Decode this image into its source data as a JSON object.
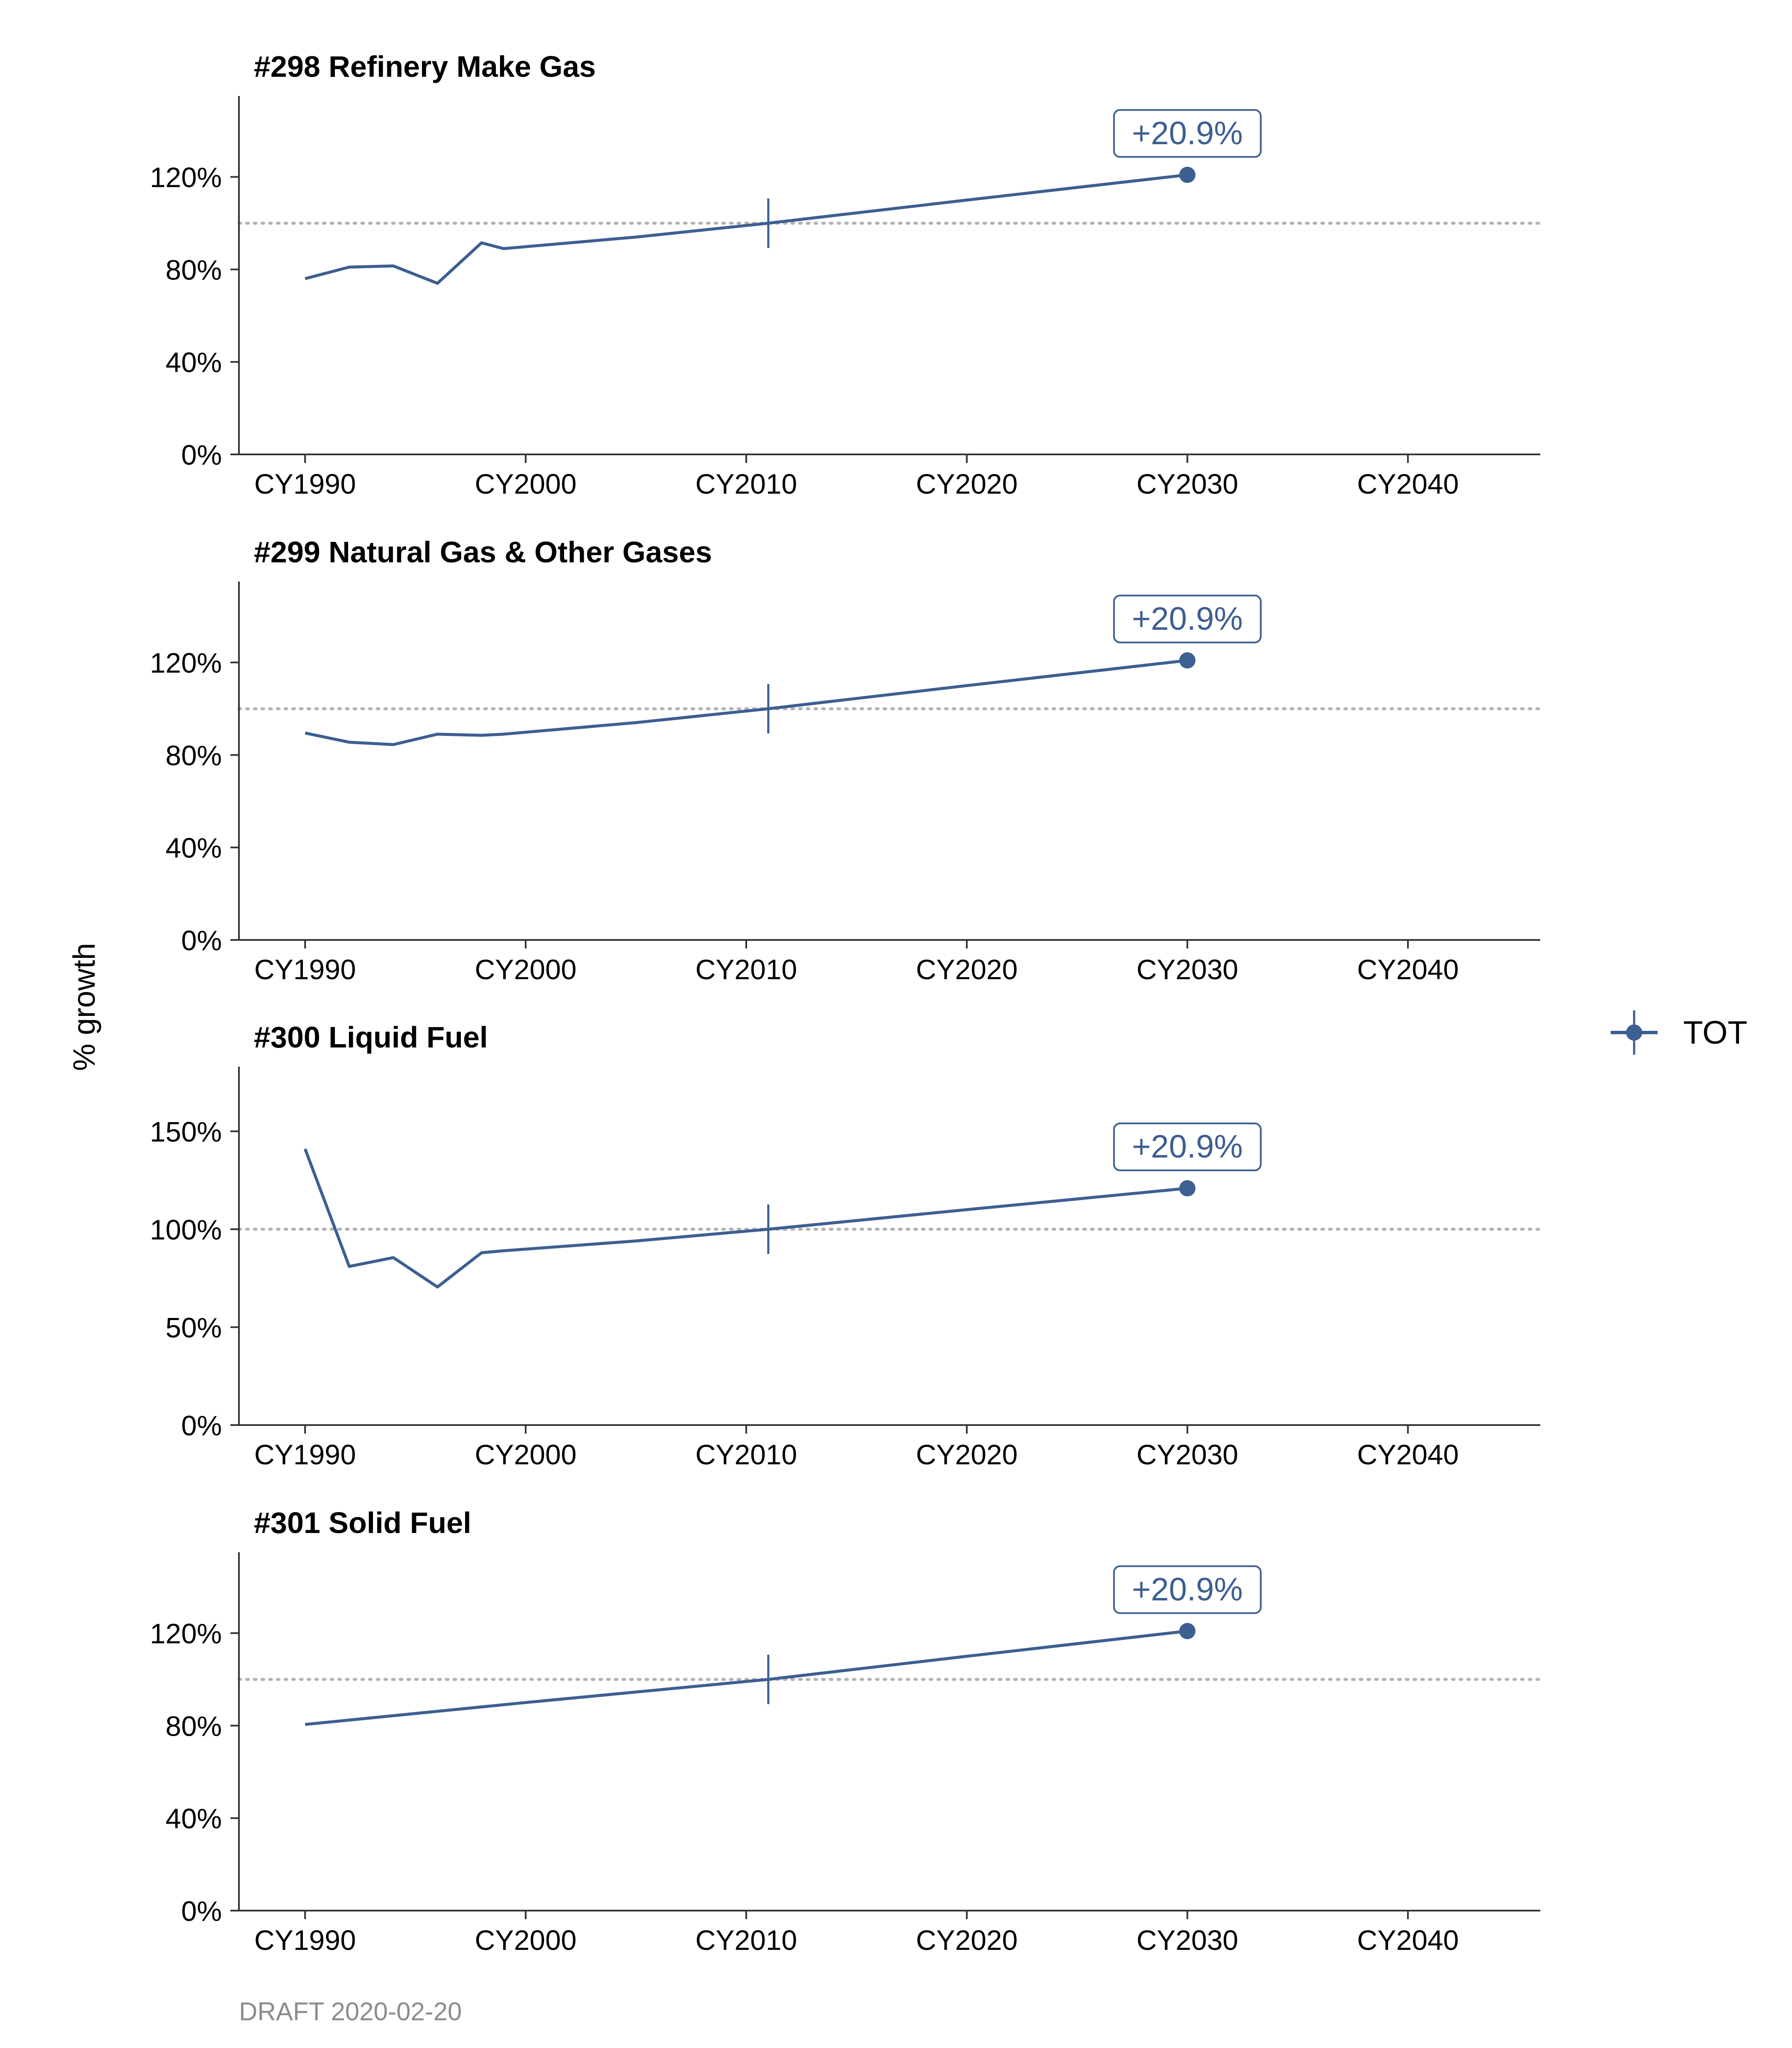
{
  "figure": {
    "ylabel": "% growth",
    "caption": "DRAFT 2020-02-20",
    "legend": {
      "label": "TOT",
      "placement": "right"
    },
    "colors": {
      "series": "#3d5f91",
      "axis": "#333333",
      "text": "#000000",
      "reference": "#b3b3b3",
      "caption": "#8c8c8c"
    }
  },
  "chart_data": [
    {
      "type": "line",
      "title": "#298 Refinery Make Gas",
      "xlim": [
        1990,
        2046
      ],
      "ylim": [
        0,
        155
      ],
      "x_ticks": [
        1990,
        2000,
        2010,
        2020,
        2030,
        2040
      ],
      "x_tick_labels": [
        "CY1990",
        "CY2000",
        "CY2010",
        "CY2020",
        "CY2030",
        "CY2040"
      ],
      "y_ticks": [
        0,
        40,
        80,
        120
      ],
      "y_tick_labels": [
        "0%",
        "40%",
        "80%",
        "120%"
      ],
      "reference_line": 100,
      "base_year_marker": {
        "x": 2011,
        "y": 100
      },
      "end_point": {
        "x": 2030,
        "y": 120.9
      },
      "annotation": "+20.9%",
      "series": [
        {
          "name": "TOT",
          "x": [
            1990,
            1992,
            1994,
            1996,
            1998,
            1999,
            2005,
            2011,
            2020,
            2030
          ],
          "y": [
            76,
            81,
            81.5,
            74,
            91.5,
            89,
            94,
            100,
            110,
            120.9
          ]
        }
      ]
    },
    {
      "type": "line",
      "title": "#299 Natural Gas & Other Gases",
      "xlim": [
        1990,
        2046
      ],
      "ylim": [
        0,
        155
      ],
      "x_ticks": [
        1990,
        2000,
        2010,
        2020,
        2030,
        2040
      ],
      "x_tick_labels": [
        "CY1990",
        "CY2000",
        "CY2010",
        "CY2020",
        "CY2030",
        "CY2040"
      ],
      "y_ticks": [
        0,
        40,
        80,
        120
      ],
      "y_tick_labels": [
        "0%",
        "40%",
        "80%",
        "120%"
      ],
      "reference_line": 100,
      "base_year_marker": {
        "x": 2011,
        "y": 100
      },
      "end_point": {
        "x": 2030,
        "y": 120.9
      },
      "annotation": "+20.9%",
      "series": [
        {
          "name": "TOT",
          "x": [
            1990,
            1992,
            1994,
            1996,
            1998,
            1999,
            2005,
            2011,
            2020,
            2030
          ],
          "y": [
            89.5,
            85.5,
            84.5,
            89,
            88.5,
            89,
            94,
            100,
            110,
            120.9
          ]
        }
      ]
    },
    {
      "type": "line",
      "title": "#300 Liquid Fuel",
      "xlim": [
        1990,
        2046
      ],
      "ylim": [
        0,
        183
      ],
      "x_ticks": [
        1990,
        2000,
        2010,
        2020,
        2030,
        2040
      ],
      "x_tick_labels": [
        "CY1990",
        "CY2000",
        "CY2010",
        "CY2020",
        "CY2030",
        "CY2040"
      ],
      "y_ticks": [
        0,
        50,
        100,
        150
      ],
      "y_tick_labels": [
        "0%",
        "50%",
        "100%",
        "150%"
      ],
      "reference_line": 100,
      "base_year_marker": {
        "x": 2011,
        "y": 100
      },
      "end_point": {
        "x": 2030,
        "y": 120.9
      },
      "annotation": "+20.9%",
      "series": [
        {
          "name": "TOT",
          "x": [
            1990,
            1992,
            1994,
            1996,
            1998,
            1999,
            2005,
            2011,
            2020,
            2030
          ],
          "y": [
            141,
            81,
            85.5,
            70.5,
            88,
            89,
            94,
            100,
            110,
            120.9
          ]
        }
      ]
    },
    {
      "type": "line",
      "title": "#301 Solid Fuel",
      "xlim": [
        1990,
        2046
      ],
      "ylim": [
        0,
        155
      ],
      "x_ticks": [
        1990,
        2000,
        2010,
        2020,
        2030,
        2040
      ],
      "x_tick_labels": [
        "CY1990",
        "CY2000",
        "CY2010",
        "CY2020",
        "CY2030",
        "CY2040"
      ],
      "y_ticks": [
        0,
        40,
        80,
        120
      ],
      "y_tick_labels": [
        "0%",
        "40%",
        "80%",
        "120%"
      ],
      "reference_line": 100,
      "base_year_marker": {
        "x": 2011,
        "y": 100
      },
      "end_point": {
        "x": 2030,
        "y": 120.9
      },
      "annotation": "+20.9%",
      "series": [
        {
          "name": "TOT",
          "x": [
            1990,
            2000,
            2011,
            2020,
            2030
          ],
          "y": [
            80.5,
            90,
            100,
            110,
            120.9
          ]
        }
      ]
    }
  ]
}
